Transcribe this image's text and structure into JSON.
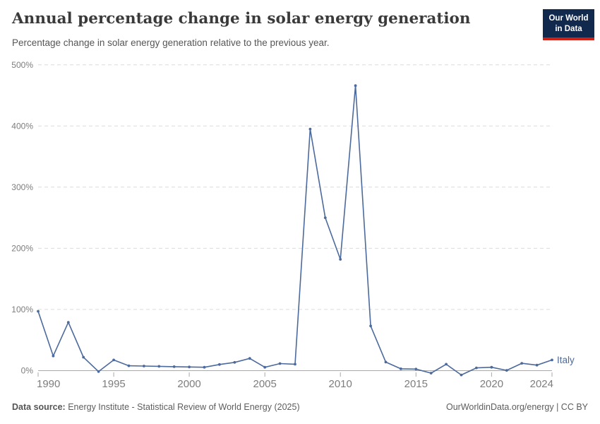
{
  "header": {
    "title": "Annual percentage change in solar energy generation",
    "subtitle": "Percentage change in solar energy generation relative to the previous year.",
    "logo": {
      "line1": "Our World",
      "line2": "in Data",
      "bg_color": "#12294e",
      "accent_color": "#cf2015"
    }
  },
  "chart_data": {
    "type": "line",
    "title": "Annual percentage change in solar energy generation",
    "xlabel": "",
    "ylabel": "",
    "x": [
      1990,
      1991,
      1992,
      1993,
      1994,
      1995,
      1996,
      1997,
      1998,
      1999,
      2000,
      2001,
      2002,
      2003,
      2004,
      2005,
      2006,
      2007,
      2008,
      2009,
      2010,
      2011,
      2012,
      2013,
      2014,
      2015,
      2016,
      2017,
      2018,
      2019,
      2020,
      2021,
      2022,
      2023,
      2024
    ],
    "series": [
      {
        "name": "Italy",
        "color": "#4c6a9c",
        "values": [
          97,
          24,
          79,
          22,
          -1.5,
          17.5,
          8,
          7.5,
          7,
          6.5,
          6,
          5.5,
          10,
          13.5,
          20,
          5.5,
          11.5,
          10.5,
          395,
          250,
          182,
          466,
          73,
          14,
          3,
          2.5,
          -4,
          10.5,
          -7,
          4.5,
          5.5,
          0.5,
          12,
          9,
          17.5
        ]
      }
    ],
    "x_ticks": [
      1990,
      1995,
      2000,
      2005,
      2010,
      2015,
      2020,
      2024
    ],
    "y_ticks": [
      0,
      100,
      200,
      300,
      400,
      500
    ],
    "y_tick_suffix": "%",
    "xlim": [
      1990,
      2024
    ],
    "ylim": [
      0,
      500
    ],
    "grid": "horizontal-dashed",
    "legend_position": "end-of-line-label"
  },
  "footer": {
    "datasource_label": "Data source:",
    "datasource": "Energy Institute - Statistical Review of World Energy (2025)",
    "credit": "OurWorldinData.org/energy | CC BY"
  }
}
